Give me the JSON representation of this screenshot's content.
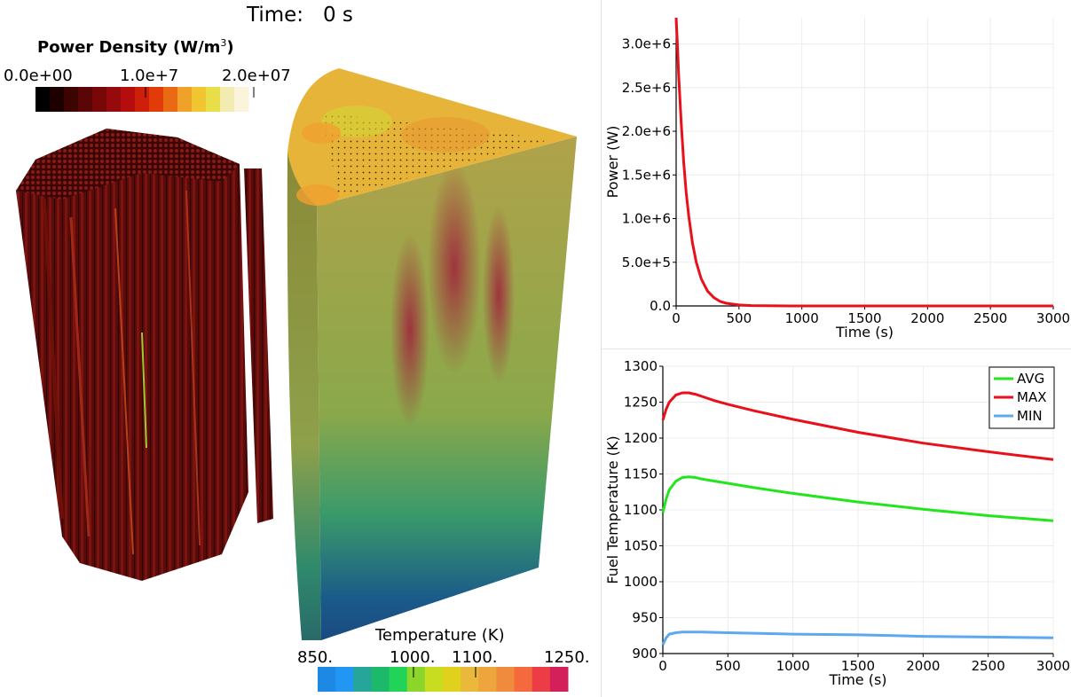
{
  "time_display": {
    "label": "Time:",
    "value": "0 s"
  },
  "power_density_bar": {
    "title": "Power Density (W/m",
    "title_sup": "3",
    "title_end": ")",
    "ticks": [
      "0.0e+00",
      "1.0e+7",
      "2.0e+07"
    ],
    "colors": [
      "#000000",
      "#1f0000",
      "#3d0303",
      "#5a0606",
      "#780808",
      "#950a0a",
      "#b30d0d",
      "#cf1f0a",
      "#e13b0a",
      "#e96a12",
      "#efa12a",
      "#f0c530",
      "#e6df4a",
      "#f2ecb0",
      "#fbf3dc"
    ]
  },
  "temperature_bar": {
    "title": "Temperature (K)",
    "ticks": [
      "850.",
      "1000.",
      "1100.",
      "1250."
    ],
    "colors": [
      "#1e88e5",
      "#2196f3",
      "#26a69a",
      "#1db96b",
      "#22d35a",
      "#8cd62c",
      "#c8dc20",
      "#e0d21c",
      "#eab83a",
      "#eda53c",
      "#f08a3c",
      "#f46a3c",
      "#ec3c46",
      "#d4205a"
    ]
  },
  "chart_data": [
    {
      "type": "line",
      "title": "",
      "xlabel": "Time (s)",
      "ylabel": "Power (W)",
      "xlim": [
        0,
        3000
      ],
      "ylim": [
        0,
        3300000
      ],
      "xticks": [
        0,
        500,
        1000,
        1500,
        2000,
        2500,
        3000
      ],
      "yticks": [
        0.0,
        500000,
        1000000,
        1500000,
        2000000,
        2500000,
        3000000
      ],
      "ytick_labels": [
        "0.0",
        "5.0e+5",
        "1.0e+6",
        "1.5e+6",
        "2.0e+6",
        "2.5e+6",
        "3.0e+6"
      ],
      "grid": true,
      "series": [
        {
          "color": "#e8101a",
          "x": [
            0,
            10,
            20,
            40,
            60,
            80,
            100,
            130,
            160,
            200,
            250,
            300,
            350,
            400,
            500,
            600,
            800,
            1000,
            1500,
            2000,
            2500,
            3000
          ],
          "y": [
            3300000,
            3000000,
            2650000,
            2100000,
            1650000,
            1300000,
            1030000,
            720000,
            500000,
            310000,
            170000,
            95000,
            52000,
            30000,
            11000,
            4000,
            900,
            300,
            100,
            60,
            40,
            30
          ]
        }
      ]
    },
    {
      "type": "line",
      "title": "",
      "xlabel": "Time (s)",
      "ylabel": "Fuel Temperature (K)",
      "xlim": [
        0,
        3000
      ],
      "ylim": [
        900,
        1300
      ],
      "xticks": [
        0,
        500,
        1000,
        1500,
        2000,
        2500,
        3000
      ],
      "yticks": [
        900,
        950,
        1000,
        1050,
        1100,
        1150,
        1200,
        1250,
        1300
      ],
      "grid": true,
      "legend": "top-right",
      "series": [
        {
          "name": "AVG",
          "color": "#22e51e",
          "x": [
            0,
            25,
            50,
            100,
            150,
            200,
            250,
            300,
            400,
            500,
            700,
            1000,
            1500,
            2000,
            2500,
            3000
          ],
          "y": [
            1096,
            1115,
            1128,
            1140,
            1145,
            1146,
            1145,
            1143,
            1140,
            1137,
            1131,
            1123,
            1111,
            1101,
            1092,
            1085
          ]
        },
        {
          "name": "MAX",
          "color": "#e8101a",
          "x": [
            0,
            25,
            50,
            100,
            150,
            200,
            250,
            300,
            400,
            500,
            700,
            1000,
            1500,
            2000,
            2500,
            3000
          ],
          "y": [
            1225,
            1240,
            1250,
            1260,
            1263,
            1263,
            1261,
            1258,
            1252,
            1247,
            1238,
            1226,
            1208,
            1193,
            1181,
            1170
          ]
        },
        {
          "name": "MIN",
          "color": "#5ca9ef",
          "x": [
            0,
            25,
            50,
            100,
            150,
            200,
            300,
            500,
            1000,
            1500,
            2000,
            2500,
            3000
          ],
          "y": [
            912,
            922,
            927,
            929,
            930,
            930,
            930,
            929,
            927,
            926,
            924,
            923,
            922
          ]
        }
      ]
    }
  ]
}
